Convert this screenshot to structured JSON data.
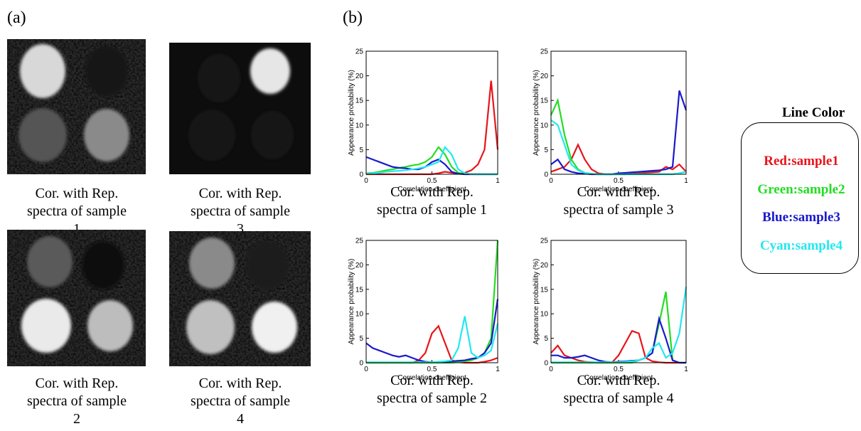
{
  "panel_labels": [
    "(a)",
    "(b)"
  ],
  "images": [
    {
      "caption": "Cor. with Rep.\nspectra of sample\n1"
    },
    {
      "caption": "Cor. with Rep.\nspectra of sample\n3"
    },
    {
      "caption": "Cor. with Rep.\nspectra of sample\n2"
    },
    {
      "caption": "Cor. with Rep.\nspectra of sample\n4"
    }
  ],
  "chart_data": [
    {
      "type": "line",
      "caption": "Cor. with Rep.\nspectra of sample 1",
      "xlabel": "Correlation coefficient",
      "ylabel": "Appearance probability (%)",
      "xlim": [
        0,
        1
      ],
      "ylim": [
        0,
        25
      ],
      "xticks": [
        0,
        0.5,
        1
      ],
      "yticks": [
        0,
        5,
        10,
        15,
        20,
        25
      ],
      "x": [
        0,
        0.05,
        0.1,
        0.15,
        0.2,
        0.25,
        0.3,
        0.35,
        0.4,
        0.45,
        0.5,
        0.55,
        0.6,
        0.65,
        0.7,
        0.75,
        0.8,
        0.85,
        0.9,
        0.95,
        1
      ],
      "series": [
        {
          "color": "#e8141b",
          "values": [
            0,
            0,
            0,
            0,
            0,
            0,
            0,
            0,
            0,
            0,
            0,
            0.2,
            0.5,
            0.3,
            0.1,
            0.3,
            0.8,
            2,
            5,
            19,
            5
          ]
        },
        {
          "color": "#22dd22",
          "values": [
            0.2,
            0.3,
            0.5,
            0.8,
            1,
            1.3,
            1.5,
            1.8,
            2,
            2.5,
            3.5,
            5.5,
            4,
            1.5,
            0.3,
            0.1,
            0,
            0,
            0,
            0,
            0
          ]
        },
        {
          "color": "#1a1acc",
          "values": [
            3.5,
            3,
            2.5,
            2,
            1.5,
            1.3,
            1.2,
            1,
            1,
            1.5,
            2.5,
            3,
            2,
            0.5,
            0.1,
            0,
            0,
            0,
            0,
            0,
            0
          ]
        },
        {
          "color": "#22e8f0",
          "values": [
            0.1,
            0.2,
            0.3,
            0.5,
            0.6,
            0.7,
            0.8,
            1,
            1.2,
            1.5,
            2,
            2.5,
            5.5,
            4,
            1,
            0.2,
            0,
            0,
            0,
            0,
            0
          ]
        }
      ]
    },
    {
      "type": "line",
      "caption": "Cor. with Rep.\nspectra of sample 3",
      "xlabel": "Correlation coefficient",
      "ylabel": "Appearance probability (%)",
      "xlim": [
        0,
        1
      ],
      "ylim": [
        0,
        25
      ],
      "xticks": [
        0,
        0.5,
        1
      ],
      "yticks": [
        0,
        5,
        10,
        15,
        20,
        25
      ],
      "x": [
        0,
        0.05,
        0.1,
        0.15,
        0.2,
        0.25,
        0.3,
        0.35,
        0.4,
        0.45,
        0.5,
        0.55,
        0.6,
        0.65,
        0.7,
        0.75,
        0.8,
        0.85,
        0.9,
        0.95,
        1
      ],
      "series": [
        {
          "color": "#e8141b",
          "values": [
            0.5,
            1,
            1.5,
            3,
            6,
            3,
            1,
            0.2,
            0,
            0,
            0,
            0,
            0.1,
            0.2,
            0.3,
            0.4,
            0.5,
            1.5,
            1,
            2,
            0.5
          ]
        },
        {
          "color": "#22dd22",
          "values": [
            12,
            15,
            8,
            3,
            1,
            0.3,
            0.1,
            0,
            0,
            0,
            0,
            0,
            0,
            0,
            0,
            0,
            0,
            0,
            0,
            0.2,
            0.5
          ]
        },
        {
          "color": "#1a1acc",
          "values": [
            2,
            3,
            1,
            0.5,
            0.2,
            0.1,
            0,
            0,
            0,
            0,
            0.2,
            0.3,
            0.4,
            0.5,
            0.6,
            0.7,
            0.8,
            1,
            1.5,
            17,
            13
          ]
        },
        {
          "color": "#22e8f0",
          "values": [
            11,
            10,
            6,
            2,
            0.8,
            0.3,
            0.1,
            0,
            0,
            0,
            0,
            0,
            0,
            0,
            0,
            0,
            0,
            0,
            0,
            0.2,
            0.5
          ]
        }
      ]
    },
    {
      "type": "line",
      "caption": "Cor. with Rep.\nspectra of sample 2",
      "xlabel": "Correlation coefficient",
      "ylabel": "Appearance probability (%)",
      "xlim": [
        0,
        1
      ],
      "ylim": [
        0,
        25
      ],
      "xticks": [
        0,
        0.5,
        1
      ],
      "yticks": [
        0,
        5,
        10,
        15,
        20,
        25
      ],
      "x": [
        0,
        0.05,
        0.1,
        0.15,
        0.2,
        0.25,
        0.3,
        0.35,
        0.4,
        0.45,
        0.5,
        0.55,
        0.6,
        0.65,
        0.7,
        0.75,
        0.8,
        0.85,
        0.9,
        0.95,
        1
      ],
      "series": [
        {
          "color": "#e8141b",
          "values": [
            0,
            0,
            0,
            0,
            0,
            0,
            0,
            0,
            0.5,
            2,
            6,
            7.5,
            4,
            0.5,
            0.1,
            0,
            0,
            0,
            0.2,
            0.5,
            1
          ]
        },
        {
          "color": "#22dd22",
          "values": [
            0,
            0,
            0,
            0,
            0,
            0,
            0,
            0,
            0,
            0,
            0,
            0,
            0,
            0,
            0.1,
            0.3,
            0.5,
            1,
            2,
            5,
            25
          ]
        },
        {
          "color": "#1a1acc",
          "values": [
            4,
            3,
            2.5,
            2,
            1.5,
            1.2,
            1.5,
            1,
            0.5,
            0.2,
            0.1,
            0.1,
            0.2,
            0.3,
            0.4,
            0.5,
            0.8,
            1,
            2,
            4,
            13
          ]
        },
        {
          "color": "#22e8f0",
          "values": [
            0.1,
            0.1,
            0.1,
            0.1,
            0.1,
            0.1,
            0.1,
            0.1,
            0.1,
            0.1,
            0.1,
            0.2,
            0.3,
            0.5,
            3,
            9.5,
            2,
            1,
            1.5,
            2.5,
            8
          ]
        }
      ]
    },
    {
      "type": "line",
      "caption": "Cor. with Rep.\nspectra of sample 4",
      "xlabel": "Correlation coefficient",
      "ylabel": "Appearance probability (%)",
      "xlim": [
        0,
        1
      ],
      "ylim": [
        0,
        25
      ],
      "xticks": [
        0,
        0.5,
        1
      ],
      "yticks": [
        0,
        5,
        10,
        15,
        20,
        25
      ],
      "x": [
        0,
        0.05,
        0.1,
        0.15,
        0.2,
        0.25,
        0.3,
        0.35,
        0.4,
        0.45,
        0.5,
        0.55,
        0.6,
        0.65,
        0.7,
        0.75,
        0.8,
        0.85,
        0.9,
        0.95,
        1
      ],
      "series": [
        {
          "color": "#e8141b",
          "values": [
            2,
            3.5,
            1.5,
            1,
            0.5,
            0.2,
            0.1,
            0,
            0,
            0,
            1.5,
            4,
            6.5,
            6,
            1,
            0.3,
            0.1,
            0,
            0,
            0,
            0
          ]
        },
        {
          "color": "#22dd22",
          "values": [
            0,
            0,
            0,
            0,
            0,
            0,
            0,
            0,
            0,
            0,
            0,
            0,
            0,
            0.5,
            1,
            2,
            8,
            14.5,
            0.5,
            0,
            0
          ]
        },
        {
          "color": "#1a1acc",
          "values": [
            1.5,
            1.5,
            1,
            1,
            1.2,
            1.5,
            1,
            0.5,
            0.2,
            0.1,
            0.2,
            0.3,
            0.4,
            0.5,
            1,
            2,
            9,
            5,
            0.5,
            0,
            0
          ]
        },
        {
          "color": "#22e8f0",
          "values": [
            0.1,
            0.1,
            0.1,
            0.1,
            0.1,
            0.1,
            0.1,
            0.1,
            0.1,
            0.1,
            0.1,
            0.2,
            0.3,
            0.5,
            1,
            3,
            4,
            1,
            2,
            6,
            15.5
          ]
        }
      ]
    }
  ],
  "legend": {
    "title": "Line Color",
    "items": [
      {
        "label": "Red:sample1",
        "color": "#e8141b"
      },
      {
        "label": "Green:sample2",
        "color": "#22dd22"
      },
      {
        "label": "Blue:sample3",
        "color": "#1a1acc"
      },
      {
        "label": "Cyan:sample4",
        "color": "#22e8f0"
      }
    ]
  }
}
